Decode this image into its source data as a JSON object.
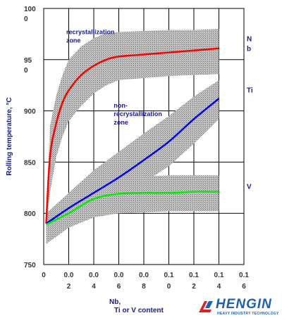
{
  "chart_data": {
    "type": "line",
    "title": "",
    "xlabel": "Nb, Ti or V content, %",
    "ylabel": "Rolling temperature, °C",
    "xlim": [
      0,
      0.16
    ],
    "ylim": [
      750,
      1000
    ],
    "x_ticks": [
      {
        "value": 0.0,
        "top": "0",
        "bottom": ""
      },
      {
        "value": 0.02,
        "top": "0.0",
        "bottom": "2"
      },
      {
        "value": 0.04,
        "top": "0.0",
        "bottom": "4"
      },
      {
        "value": 0.06,
        "top": "0.0",
        "bottom": "6"
      },
      {
        "value": 0.08,
        "top": "0.0",
        "bottom": "8"
      },
      {
        "value": 0.1,
        "top": "0.1",
        "bottom": "0"
      },
      {
        "value": 0.12,
        "top": "0.1",
        "bottom": "2"
      },
      {
        "value": 0.14,
        "top": "0.1",
        "bottom": "4"
      },
      {
        "value": 0.16,
        "top": "0.1",
        "bottom": "6"
      }
    ],
    "y_ticks": [
      {
        "value": 1000,
        "top": "100",
        "bottom": "0"
      },
      {
        "value": 950,
        "top": "95",
        "bottom": "0"
      },
      {
        "value": 900,
        "top": "900",
        "bottom": ""
      },
      {
        "value": 850,
        "top": "850",
        "bottom": ""
      },
      {
        "value": 800,
        "top": "800",
        "bottom": ""
      },
      {
        "value": 750,
        "top": "750",
        "bottom": ""
      }
    ],
    "series": [
      {
        "name": "Nb",
        "label_top": "N",
        "label_bottom": "b",
        "color": "#ff0000",
        "x": [
          0.002,
          0.005,
          0.01,
          0.015,
          0.02,
          0.03,
          0.04,
          0.05,
          0.06,
          0.08,
          0.1,
          0.12,
          0.14
        ],
        "y": [
          790,
          855,
          888,
          908,
          920,
          935,
          944,
          950,
          953,
          955,
          957,
          959,
          961
        ],
        "band_upper": [
          795,
          885,
          915,
          935,
          950,
          963,
          971,
          976,
          977,
          978,
          979,
          979,
          980
        ],
        "band_lower": [
          785,
          820,
          855,
          875,
          890,
          905,
          917,
          925,
          930,
          932,
          934,
          935,
          936
        ]
      },
      {
        "name": "Ti",
        "label_top": "Ti",
        "label_bottom": "",
        "color": "#0000ff",
        "x": [
          0.002,
          0.02,
          0.04,
          0.06,
          0.08,
          0.1,
          0.12,
          0.14
        ],
        "y": [
          790,
          805,
          820,
          835,
          852,
          870,
          892,
          912
        ],
        "band_upper": [
          800,
          820,
          842,
          860,
          878,
          895,
          914,
          930
        ],
        "band_lower": [
          778,
          790,
          800,
          815,
          830,
          846,
          868,
          892
        ]
      },
      {
        "name": "V",
        "label_top": "V",
        "label_bottom": "",
        "color": "#00ee00",
        "x": [
          0.002,
          0.02,
          0.04,
          0.06,
          0.08,
          0.1,
          0.12,
          0.14
        ],
        "y": [
          789,
          800,
          814,
          819,
          820,
          820,
          821,
          821
        ],
        "band_upper": [
          798,
          815,
          828,
          834,
          836,
          837,
          837,
          837
        ],
        "band_lower": [
          770,
          786,
          796,
          800,
          801,
          802,
          802,
          802
        ]
      }
    ],
    "annotations": [
      {
        "lines": [
          "recrystallization",
          "zone"
        ],
        "x": 0.018,
        "y": 975
      },
      {
        "lines": [
          "non-",
          "recrystallization",
          "zone"
        ],
        "x": 0.056,
        "y": 903
      }
    ],
    "grid": true,
    "legend": "inline-right",
    "band_color": "#a8a8a8"
  },
  "logo": {
    "name": "HENGIN",
    "tagline": "HEAVY INDUSTRY TECHNOLOGY",
    "color": "#1f5fae"
  }
}
